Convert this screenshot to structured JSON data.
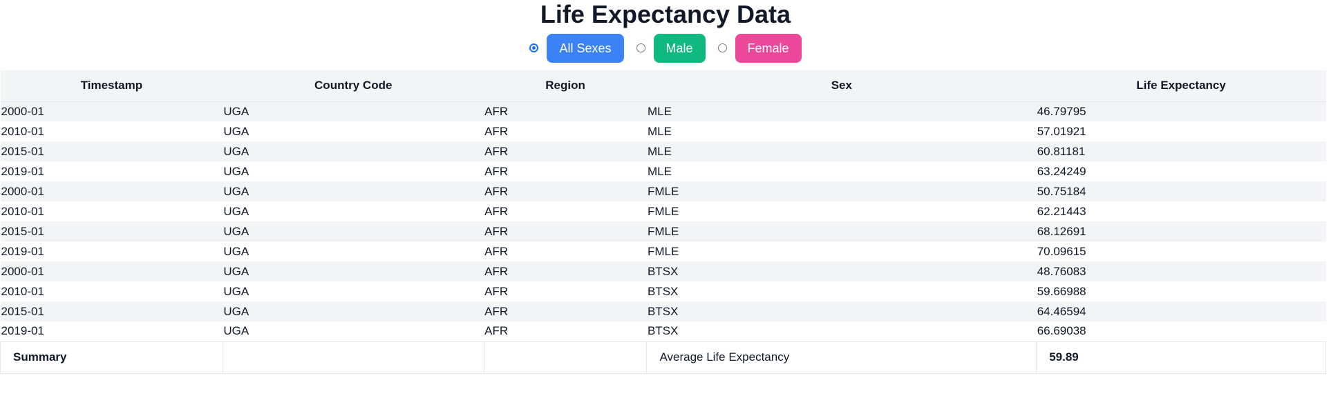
{
  "title": "Life Expectancy Data",
  "filters": [
    {
      "label": "All Sexes",
      "color": "#3b82f6",
      "checked": true
    },
    {
      "label": "Male",
      "color": "#10b981",
      "checked": false
    },
    {
      "label": "Female",
      "color": "#ec4899",
      "checked": false
    }
  ],
  "table": {
    "headers": [
      "Timestamp",
      "Country Code",
      "Region",
      "Sex",
      "Life Expectancy"
    ],
    "rows": [
      [
        "2000-01",
        "UGA",
        "AFR",
        "MLE",
        "46.79795"
      ],
      [
        "2010-01",
        "UGA",
        "AFR",
        "MLE",
        "57.01921"
      ],
      [
        "2015-01",
        "UGA",
        "AFR",
        "MLE",
        "60.81181"
      ],
      [
        "2019-01",
        "UGA",
        "AFR",
        "MLE",
        "63.24249"
      ],
      [
        "2000-01",
        "UGA",
        "AFR",
        "FMLE",
        "50.75184"
      ],
      [
        "2010-01",
        "UGA",
        "AFR",
        "FMLE",
        "62.21443"
      ],
      [
        "2015-01",
        "UGA",
        "AFR",
        "FMLE",
        "68.12691"
      ],
      [
        "2019-01",
        "UGA",
        "AFR",
        "FMLE",
        "70.09615"
      ],
      [
        "2000-01",
        "UGA",
        "AFR",
        "BTSX",
        "48.76083"
      ],
      [
        "2010-01",
        "UGA",
        "AFR",
        "BTSX",
        "59.66988"
      ],
      [
        "2015-01",
        "UGA",
        "AFR",
        "BTSX",
        "64.46594"
      ],
      [
        "2019-01",
        "UGA",
        "AFR",
        "BTSX",
        "66.69038"
      ]
    ],
    "summary": {
      "label": "Summary",
      "metric_label": "Average Life Expectancy",
      "metric_value": "59.89"
    }
  }
}
